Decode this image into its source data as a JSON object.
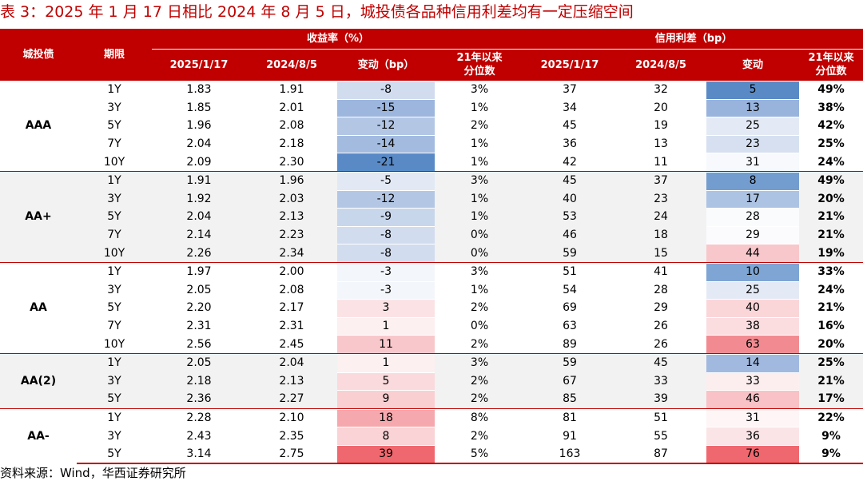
{
  "title": "表 3：2025 年 1 月 17 日相比 2024 年 8 月 5 日，城投债各品种信用利差均有一定压缩空间",
  "header": {
    "col_group": "城投债",
    "col_term": "期限",
    "yield_group": "收益率（%）",
    "spread_group": "信用利差（bp）",
    "date1": "2025/1/17",
    "date2": "2024/8/5",
    "change_bp": "变动（bp）",
    "pct21": "21年以来\n分位数",
    "date1_b": "2025/1/17",
    "date2_b": "2024/8/5",
    "change": "变动",
    "pct21_b": "21年以来\n分位数"
  },
  "groups": [
    {
      "name": "AAA",
      "rows": [
        {
          "term": "1Y",
          "y1": "1.83",
          "y2": "1.91",
          "yc": "-8",
          "yp": "3%",
          "s1": "37",
          "s2": "32",
          "sc": "5",
          "sp": "49%",
          "yc_color": "#d2dcef",
          "sc_color": "#5a8ac6"
        },
        {
          "term": "3Y",
          "y1": "1.85",
          "y2": "2.01",
          "yc": "-15",
          "yp": "1%",
          "s1": "34",
          "s2": "20",
          "sc": "13",
          "sp": "38%",
          "yc_color": "#9cb6dd",
          "sc_color": "#98b3dc"
        },
        {
          "term": "5Y",
          "y1": "1.96",
          "y2": "2.08",
          "yc": "-12",
          "yp": "2%",
          "s1": "45",
          "s2": "19",
          "sc": "25",
          "sp": "42%",
          "yc_color": "#b3c7e5",
          "sc_color": "#e4eaf5"
        },
        {
          "term": "7Y",
          "y1": "2.04",
          "y2": "2.18",
          "yc": "-14",
          "yp": "1%",
          "s1": "36",
          "s2": "13",
          "sc": "23",
          "sp": "25%",
          "yc_color": "#a3bbdf",
          "sc_color": "#d6e0f0"
        },
        {
          "term": "10Y",
          "y1": "2.09",
          "y2": "2.30",
          "yc": "-21",
          "yp": "1%",
          "s1": "42",
          "s2": "11",
          "sc": "31",
          "sp": "24%",
          "yc_color": "#5a8ac6",
          "sc_color": "#f7f9fc"
        }
      ]
    },
    {
      "name": "AA+",
      "rows": [
        {
          "term": "1Y",
          "y1": "1.91",
          "y2": "1.96",
          "yc": "-5",
          "yp": "3%",
          "s1": "45",
          "s2": "37",
          "sc": "8",
          "sp": "49%",
          "yc_color": "#e2e9f4",
          "sc_color": "#739dcf"
        },
        {
          "term": "3Y",
          "y1": "1.92",
          "y2": "2.03",
          "yc": "-12",
          "yp": "1%",
          "s1": "40",
          "s2": "23",
          "sc": "17",
          "sp": "20%",
          "yc_color": "#b3c7e5",
          "sc_color": "#adc3e3"
        },
        {
          "term": "5Y",
          "y1": "2.04",
          "y2": "2.13",
          "yc": "-9",
          "yp": "1%",
          "s1": "53",
          "s2": "24",
          "sc": "28",
          "sp": "21%",
          "yc_color": "#c8d6ec",
          "sc_color": "#fafbfd"
        },
        {
          "term": "7Y",
          "y1": "2.14",
          "y2": "2.23",
          "yc": "-8",
          "yp": "0%",
          "s1": "46",
          "s2": "18",
          "sc": "29",
          "sp": "21%",
          "yc_color": "#d2dcef",
          "sc_color": "#fbfbfd"
        },
        {
          "term": "10Y",
          "y1": "2.26",
          "y2": "2.34",
          "yc": "-8",
          "yp": "0%",
          "s1": "59",
          "s2": "15",
          "sc": "44",
          "sp": "19%",
          "yc_color": "#d2dcef",
          "sc_color": "#f8c7cb"
        }
      ]
    },
    {
      "name": "AA",
      "rows": [
        {
          "term": "1Y",
          "y1": "1.97",
          "y2": "2.00",
          "yc": "-3",
          "yp": "3%",
          "s1": "51",
          "s2": "41",
          "sc": "10",
          "sp": "33%",
          "yc_color": "#f3f6fb",
          "sc_color": "#7ea5d3"
        },
        {
          "term": "3Y",
          "y1": "2.05",
          "y2": "2.08",
          "yc": "-3",
          "yp": "1%",
          "s1": "54",
          "s2": "28",
          "sc": "25",
          "sp": "24%",
          "yc_color": "#f3f6fb",
          "sc_color": "#e4eaf5"
        },
        {
          "term": "5Y",
          "y1": "2.20",
          "y2": "2.17",
          "yc": "3",
          "yp": "2%",
          "s1": "69",
          "s2": "29",
          "sc": "40",
          "sp": "21%",
          "yc_color": "#fbe3e5",
          "sc_color": "#fad6d9"
        },
        {
          "term": "7Y",
          "y1": "2.31",
          "y2": "2.31",
          "yc": "1",
          "yp": "0%",
          "s1": "63",
          "s2": "26",
          "sc": "38",
          "sp": "16%",
          "yc_color": "#fcf0f1",
          "sc_color": "#fbdde0"
        },
        {
          "term": "10Y",
          "y1": "2.56",
          "y2": "2.45",
          "yc": "11",
          "yp": "2%",
          "s1": "89",
          "s2": "26",
          "sc": "63",
          "sp": "20%",
          "yc_color": "#f8c7cb",
          "sc_color": "#f28b91"
        }
      ]
    },
    {
      "name": "AA(2)",
      "rows": [
        {
          "term": "1Y",
          "y1": "2.05",
          "y2": "2.04",
          "yc": "1",
          "yp": "3%",
          "s1": "59",
          "s2": "45",
          "sc": "14",
          "sp": "25%",
          "yc_color": "#fcf0f1",
          "sc_color": "#a1b9df"
        },
        {
          "term": "3Y",
          "y1": "2.18",
          "y2": "2.13",
          "yc": "5",
          "yp": "2%",
          "s1": "67",
          "s2": "33",
          "sc": "33",
          "sp": "21%",
          "yc_color": "#fadadd",
          "sc_color": "#fceeef"
        },
        {
          "term": "5Y",
          "y1": "2.36",
          "y2": "2.27",
          "yc": "9",
          "yp": "2%",
          "s1": "85",
          "s2": "39",
          "sc": "46",
          "sp": "17%",
          "yc_color": "#f9cfd2",
          "sc_color": "#f8c2c6"
        }
      ]
    },
    {
      "name": "AA-",
      "rows": [
        {
          "term": "1Y",
          "y1": "2.28",
          "y2": "2.10",
          "yc": "18",
          "yp": "8%",
          "s1": "81",
          "s2": "51",
          "sc": "31",
          "sp": "22%",
          "yc_color": "#f5a9ae",
          "sc_color": "#fdf5f6"
        },
        {
          "term": "3Y",
          "y1": "2.43",
          "y2": "2.35",
          "yc": "8",
          "yp": "2%",
          "s1": "91",
          "s2": "55",
          "sc": "36",
          "sp": "9%",
          "yc_color": "#f9d3d6",
          "sc_color": "#fbe4e6"
        },
        {
          "term": "5Y",
          "y1": "3.14",
          "y2": "2.75",
          "yc": "39",
          "yp": "5%",
          "s1": "163",
          "s2": "87",
          "sc": "76",
          "sp": "9%",
          "yc_color": "#f0686f",
          "sc_color": "#f0686f"
        }
      ]
    }
  ],
  "source": "资料来源：Wind，华西证券研究所"
}
